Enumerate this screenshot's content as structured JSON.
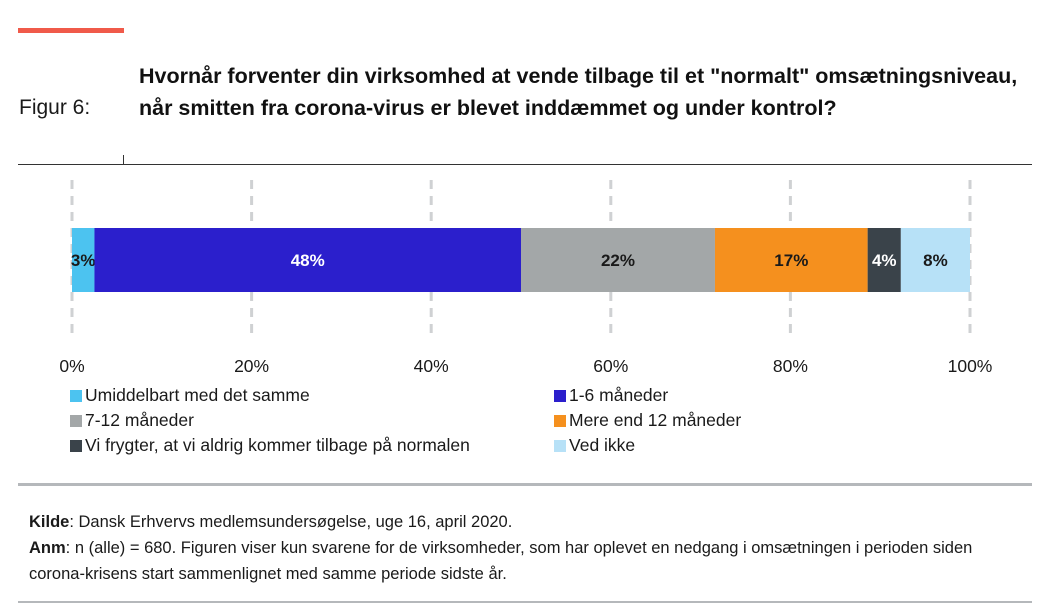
{
  "figure_label": "Figur 6:",
  "title": "Hvornår forventer din virksomhed at vende tilbage til et \"normalt\" omsætningsniveau, når smitten fra corona-virus er blevet inddæmmet og under kontrol?",
  "chart_data": {
    "type": "bar",
    "orientation": "horizontal-stacked",
    "xlim": [
      0,
      100
    ],
    "ticks": [
      "0%",
      "20%",
      "40%",
      "60%",
      "80%",
      "100%"
    ],
    "grid": true,
    "legend_placement": "bottom",
    "series": [
      {
        "name": "Umiddelbart med det samme",
        "value": 2.5,
        "label": "3%",
        "color": "#4cc3f0",
        "label_color": "#1a1a1a"
      },
      {
        "name": "1-6 måneder",
        "value": 47.5,
        "label": "48%",
        "color": "#2b1fcc",
        "label_color": "#ffffff"
      },
      {
        "name": "7-12 måneder",
        "value": 21.6,
        "label": "22%",
        "color": "#a3a7a8",
        "label_color": "#1a1a1a"
      },
      {
        "name": "Mere end 12 måneder",
        "value": 17.0,
        "label": "17%",
        "color": "#f5901e",
        "label_color": "#1a1a1a"
      },
      {
        "name": "Vi frygter, at vi aldrig kommer tilbage på normalen",
        "value": 3.7,
        "label": "4%",
        "color": "#3a434a",
        "label_color": "#ffffff"
      },
      {
        "name": "Ved ikke",
        "value": 7.7,
        "label": "8%",
        "color": "#b7e1f7",
        "label_color": "#1a1a1a"
      }
    ]
  },
  "notes": {
    "source_label": "Kilde",
    "source_text": ": Dansk Erhvervs medlemsundersøgelse, uge 16, april 2020.",
    "anm_label": "Anm",
    "anm_text": ": n (alle) = 680. Figuren viser kun svarene for de virksomheder, som har oplevet en nedgang i omsætningen i perioden siden corona-krisens start sammenlignet med samme periode sidste år."
  }
}
